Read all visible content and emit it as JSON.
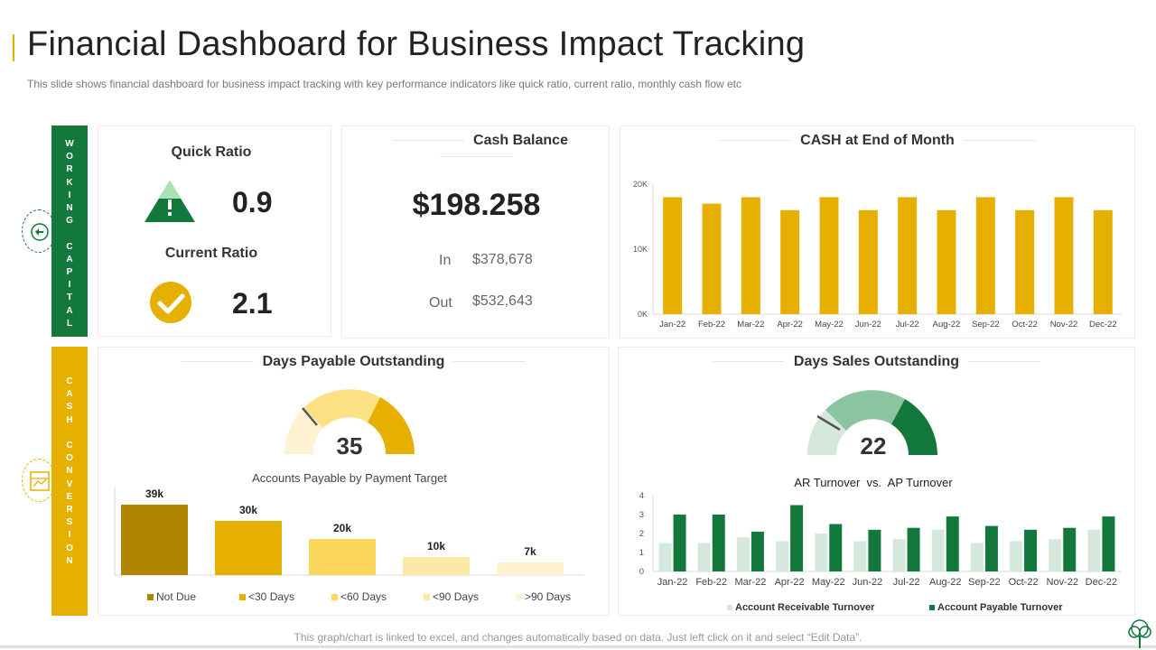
{
  "header": {
    "title": "Financial Dashboard for Business Impact Tracking",
    "subtitle": "This slide shows financial dashboard for business impact tracking with key performance indicators like quick ratio, current ratio, monthly cash flow etc"
  },
  "sidebar": {
    "working_capital": [
      "W",
      "O",
      "R",
      "K",
      "I",
      "N",
      "G",
      "",
      "C",
      "A",
      "P",
      "I",
      "T",
      "A",
      "L"
    ],
    "cash_conversion": [
      "C",
      "A",
      "S",
      "H",
      "",
      "C",
      "O",
      "N",
      "V",
      "E",
      "R",
      "S",
      "I",
      "O",
      "N"
    ]
  },
  "ratios": {
    "quick_label": "Quick Ratio",
    "quick_value": "0.9",
    "current_label": "Current Ratio",
    "current_value": "2.1"
  },
  "cash_balance": {
    "title": "Cash Balance",
    "value": "$198.258",
    "in_label": "In",
    "in_value": "$378,678",
    "out_label": "Out",
    "out_value": "$532,643"
  },
  "dpo": {
    "title": "Days Payable Outstanding",
    "gauge_value": "35",
    "chart_title": "Accounts Payable by Payment Target"
  },
  "dso": {
    "title": "Days Sales Outstanding",
    "gauge_value": "22",
    "chart_title": "AR Turnover  vs.  AP Turnover"
  },
  "colors": {
    "green": "#13783c",
    "gold": "#e6b000",
    "ar_light": "#d5e8dc",
    "ap_dark": "#13783c"
  },
  "footer": {
    "note": "This graph/chart is linked to excel, and changes automatically based on data. Just left click on it and select “Edit Data”."
  },
  "chart_data": [
    {
      "type": "bar",
      "title": "CASH at End of Month",
      "categories": [
        "Jan-22",
        "Feb-22",
        "Mar-22",
        "Apr-22",
        "May-22",
        "Jun-22",
        "Jul-22",
        "Aug-22",
        "Sep-22",
        "Oct-22",
        "Nov-22",
        "Dec-22"
      ],
      "values": [
        18000,
        17000,
        18000,
        16000,
        18000,
        16000,
        18000,
        16000,
        18000,
        16000,
        18000,
        16000
      ],
      "ylim": [
        0,
        20000
      ],
      "yticks": [
        "0K",
        "10K",
        "20K"
      ],
      "color": "#e6b000"
    },
    {
      "type": "bar",
      "title": "Accounts Payable by Payment Target",
      "categories": [
        "Not Due",
        "<30 Days",
        "<60 Days",
        "<90 Days",
        ">90 Days"
      ],
      "values": [
        39,
        30,
        20,
        10,
        7
      ],
      "labels": [
        "39k",
        "30k",
        "20k",
        "10k",
        "7k"
      ],
      "colors": [
        "#b08500",
        "#e6b000",
        "#fbd75b",
        "#fce9a8",
        "#fdf3d3"
      ],
      "ylim": [
        0,
        45
      ]
    },
    {
      "type": "bar",
      "title": "AR Turnover  vs.  AP Turnover",
      "categories": [
        "Jan-22",
        "Feb-22",
        "Mar-22",
        "Apr-22",
        "May-22",
        "Jun-22",
        "Jul-22",
        "Aug-22",
        "Sep-22",
        "Oct-22",
        "Nov-22",
        "Dec-22"
      ],
      "series": [
        {
          "name": "Account Receivable Turnover",
          "values": [
            1.5,
            1.5,
            1.8,
            1.6,
            2.0,
            1.6,
            1.7,
            2.2,
            1.5,
            1.6,
            1.7,
            2.2
          ],
          "color": "#d5e8dc"
        },
        {
          "name": "Account Payable Turnover",
          "values": [
            3.0,
            3.0,
            2.1,
            3.5,
            2.5,
            2.2,
            2.3,
            2.9,
            2.4,
            2.2,
            2.3,
            2.9
          ],
          "color": "#13783c"
        }
      ],
      "ylim": [
        0,
        4
      ],
      "yticks": [
        "0",
        "1",
        "2",
        "3",
        "4"
      ]
    }
  ]
}
